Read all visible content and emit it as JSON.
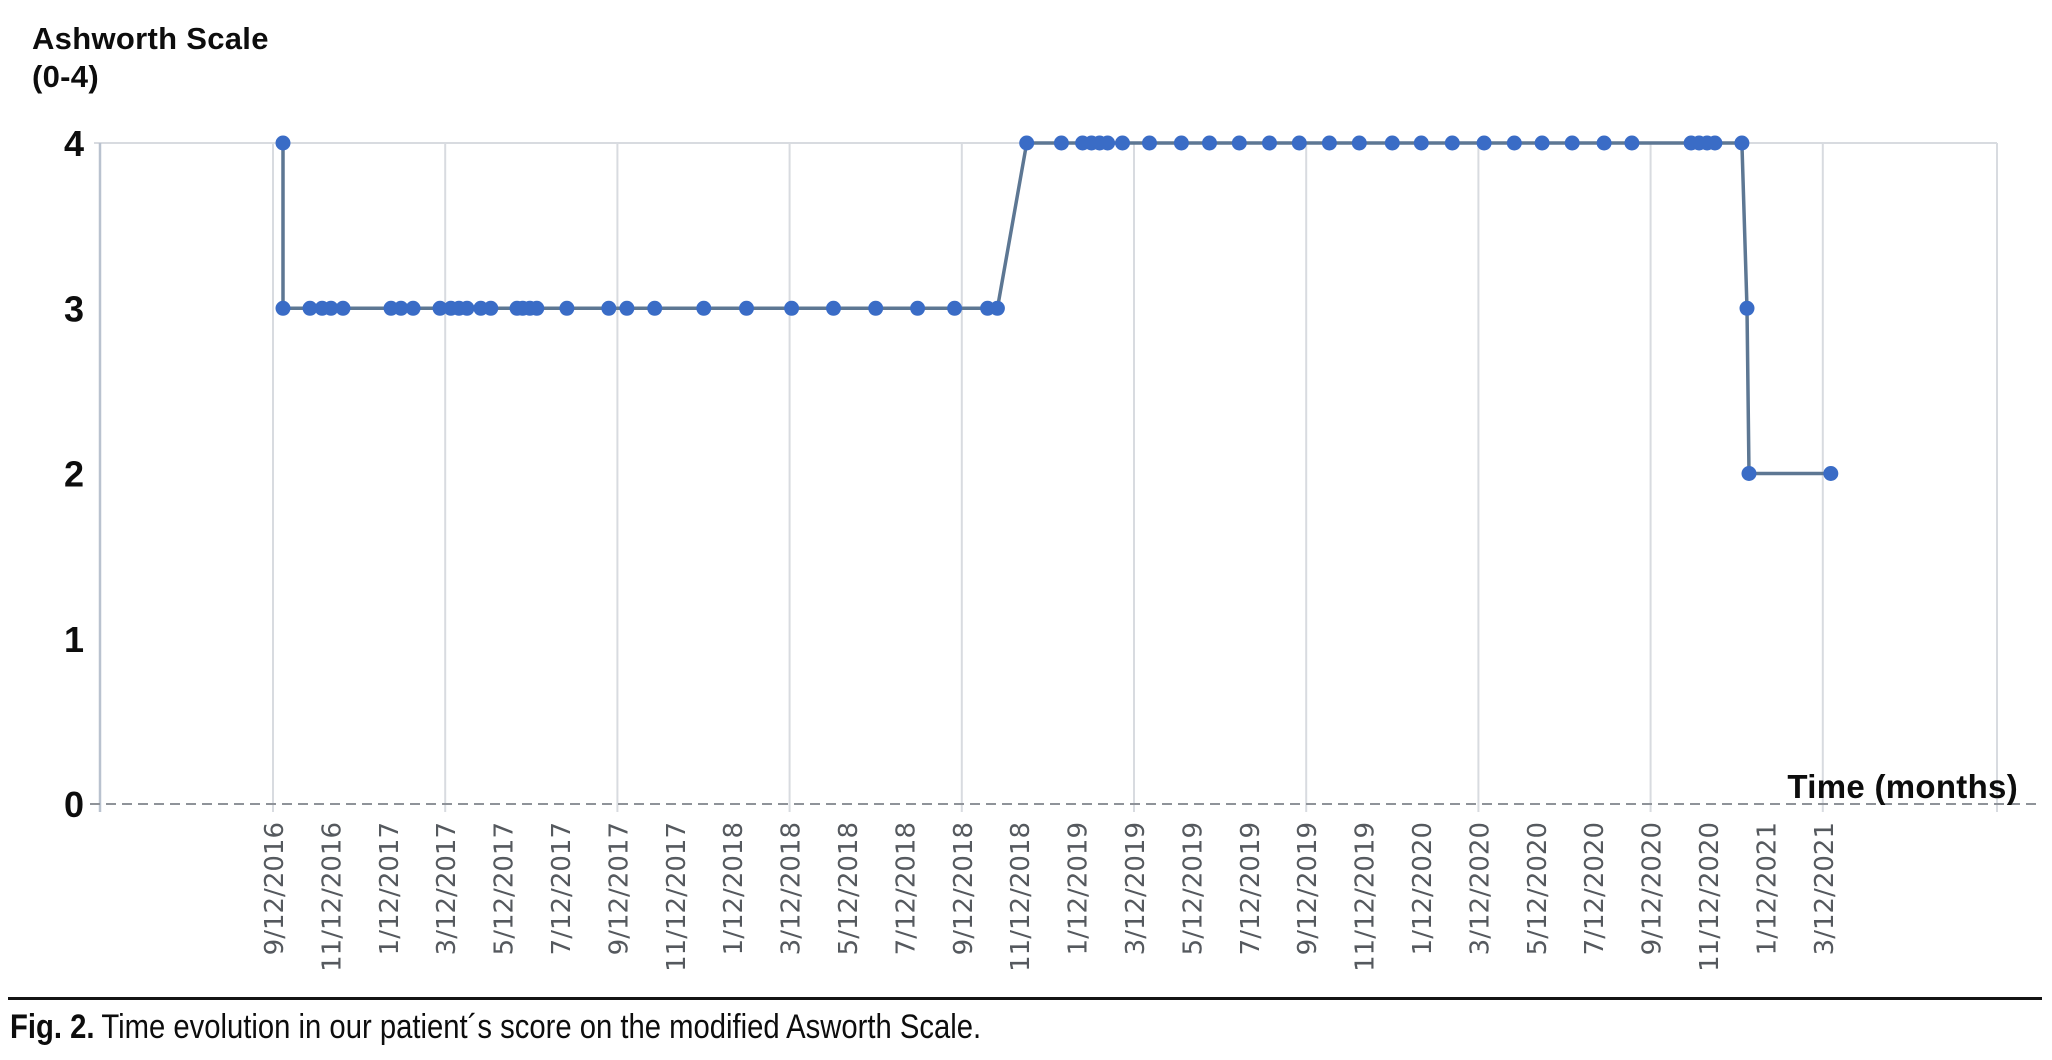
{
  "page": {
    "background": "#ffffff"
  },
  "chart_data": {
    "type": "line",
    "title": "Ashworth Scale",
    "title_line2": "(0-4)",
    "xlabel": "Time (months)",
    "ylabel": "Ashworth Scale (0-4)",
    "ylim": [
      0,
      4
    ],
    "y_ticks": [
      4,
      3,
      2,
      1,
      0
    ],
    "x_tick_step_months": 2,
    "grid_step_months": 6,
    "x_total_months": 54,
    "grid": true,
    "legend": "none",
    "x_tick_labels": [
      "9/12/2016",
      "11/12/2016",
      "1/12/2017",
      "3/12/2017",
      "5/12/2017",
      "7/12/2017",
      "9/12/2017",
      "11/12/2017",
      "1/12/2018",
      "3/12/2018",
      "5/12/2018",
      "7/12/2018",
      "9/12/2018",
      "11/12/2018",
      "1/12/2019",
      "3/12/2019",
      "5/12/2019",
      "7/12/2019",
      "9/12/2019",
      "11/12/2019",
      "1/12/2020",
      "3/12/2020",
      "5/12/2020",
      "7/12/2020",
      "9/12/2020",
      "11/12/2020",
      "1/12/2021",
      "3/12/2021"
    ],
    "series": [
      {
        "name": "Ashworth Scale (0-4)",
        "points": [
          [
            0.35,
            4
          ],
          [
            0.35,
            3
          ],
          [
            1.29,
            3
          ],
          [
            1.71,
            3
          ],
          [
            2.02,
            3
          ],
          [
            2.44,
            3
          ],
          [
            4.11,
            3
          ],
          [
            4.46,
            3
          ],
          [
            4.88,
            3
          ],
          [
            5.82,
            3
          ],
          [
            6.2,
            3
          ],
          [
            6.48,
            3
          ],
          [
            6.76,
            3
          ],
          [
            7.24,
            3
          ],
          [
            7.59,
            3
          ],
          [
            8.5,
            3
          ],
          [
            8.7,
            3
          ],
          [
            8.95,
            3
          ],
          [
            9.19,
            3
          ],
          [
            10.24,
            3
          ],
          [
            11.7,
            3
          ],
          [
            12.33,
            3
          ],
          [
            13.3,
            3
          ],
          [
            15.01,
            3
          ],
          [
            16.5,
            3
          ],
          [
            18.07,
            3
          ],
          [
            19.53,
            3
          ],
          [
            21.0,
            3
          ],
          [
            22.46,
            3
          ],
          [
            23.75,
            3
          ],
          [
            24.9,
            3
          ],
          [
            25.24,
            3
          ],
          [
            26.26,
            4
          ],
          [
            27.47,
            4
          ],
          [
            28.21,
            4
          ],
          [
            28.52,
            4
          ],
          [
            28.8,
            4
          ],
          [
            29.08,
            4
          ],
          [
            29.6,
            4
          ],
          [
            30.54,
            4
          ],
          [
            31.65,
            4
          ],
          [
            32.63,
            4
          ],
          [
            33.67,
            4
          ],
          [
            34.72,
            4
          ],
          [
            35.76,
            4
          ],
          [
            36.81,
            4
          ],
          [
            37.85,
            4
          ],
          [
            39.0,
            4
          ],
          [
            40.01,
            4
          ],
          [
            41.09,
            4
          ],
          [
            42.2,
            4
          ],
          [
            43.25,
            4
          ],
          [
            44.22,
            4
          ],
          [
            45.27,
            4
          ],
          [
            46.38,
            4
          ],
          [
            47.35,
            4
          ],
          [
            49.41,
            4
          ],
          [
            49.69,
            4
          ],
          [
            49.97,
            4
          ],
          [
            50.24,
            4
          ],
          [
            51.18,
            4
          ],
          [
            51.36,
            3
          ],
          [
            51.43,
            2
          ],
          [
            54.28,
            2
          ]
        ]
      }
    ],
    "colors": {
      "marker": "#3a6cc6",
      "line": "#5d7793",
      "grid": "#d8dbe0",
      "y_axis": "#b9c2cf",
      "zero_dash": "#8f9399",
      "x_tick_text": "#55595e",
      "text": "#0d0d0d"
    }
  },
  "caption": {
    "label": "Fig. 2.",
    "text": "Time evolution in our patient´s score on the modified Asworth Scale."
  }
}
